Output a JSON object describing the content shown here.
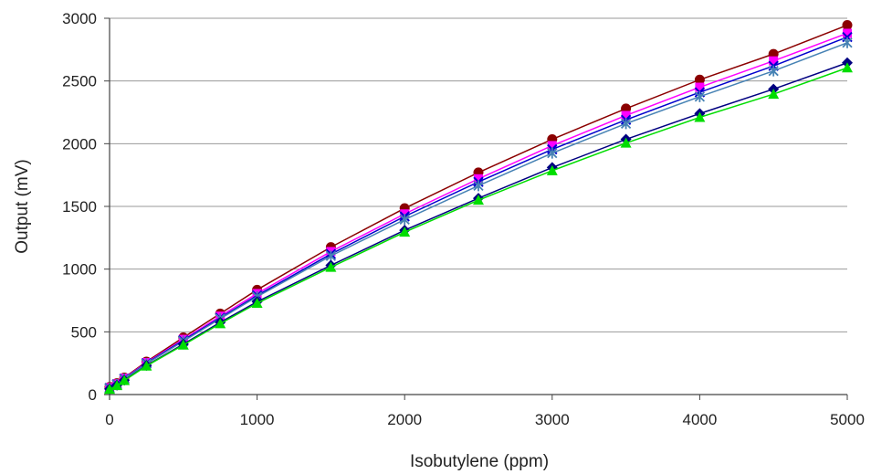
{
  "chart_data": {
    "type": "line",
    "title": "",
    "xlabel": "Isobutylene (ppm)",
    "ylabel": "Output (mV)",
    "xlim": [
      0,
      5000
    ],
    "ylim": [
      0,
      3000
    ],
    "xticks": [
      0,
      1000,
      2000,
      3000,
      4000,
      5000
    ],
    "yticks": [
      0,
      500,
      1000,
      1500,
      2000,
      2500,
      3000
    ],
    "xtick_labels": [
      "0",
      "1000",
      "2000",
      "3000",
      "4000",
      "5000"
    ],
    "ytick_labels": [
      "0",
      "500",
      "1000",
      "1500",
      "2000",
      "2500",
      "3000"
    ],
    "grid": "horizontal",
    "legend": "none",
    "x": [
      0,
      50,
      100,
      250,
      500,
      750,
      1000,
      1500,
      2000,
      2500,
      3000,
      3500,
      4000,
      4500,
      5000
    ],
    "series": [
      {
        "color": "#8B0000",
        "marker": "circle",
        "values": [
          60,
          90,
          135,
          262,
          455,
          645,
          835,
          1175,
          1485,
          1770,
          2035,
          2280,
          2510,
          2715,
          2945
        ]
      },
      {
        "color": "#FF00FF",
        "marker": "square",
        "values": [
          55,
          85,
          130,
          255,
          440,
          625,
          805,
          1140,
          1440,
          1720,
          1985,
          2225,
          2450,
          2660,
          2880
        ]
      },
      {
        "color": "#0000CD",
        "marker": "x",
        "values": [
          52,
          82,
          126,
          250,
          432,
          612,
          790,
          1120,
          1420,
          1695,
          1955,
          2190,
          2410,
          2620,
          2850
        ]
      },
      {
        "color": "#4682B4",
        "marker": "star",
        "values": [
          50,
          80,
          124,
          246,
          425,
          605,
          780,
          1105,
          1395,
          1665,
          1925,
          2160,
          2375,
          2580,
          2805
        ]
      },
      {
        "color": "#000080",
        "marker": "diamond",
        "values": [
          45,
          75,
          115,
          232,
          402,
          575,
          740,
          1030,
          1310,
          1565,
          1810,
          2035,
          2240,
          2435,
          2645
        ]
      },
      {
        "color": "#00DD00",
        "marker": "triangle",
        "values": [
          42,
          72,
          112,
          228,
          395,
          565,
          728,
          1015,
          1295,
          1550,
          1785,
          2005,
          2210,
          2395,
          2605
        ]
      }
    ]
  }
}
